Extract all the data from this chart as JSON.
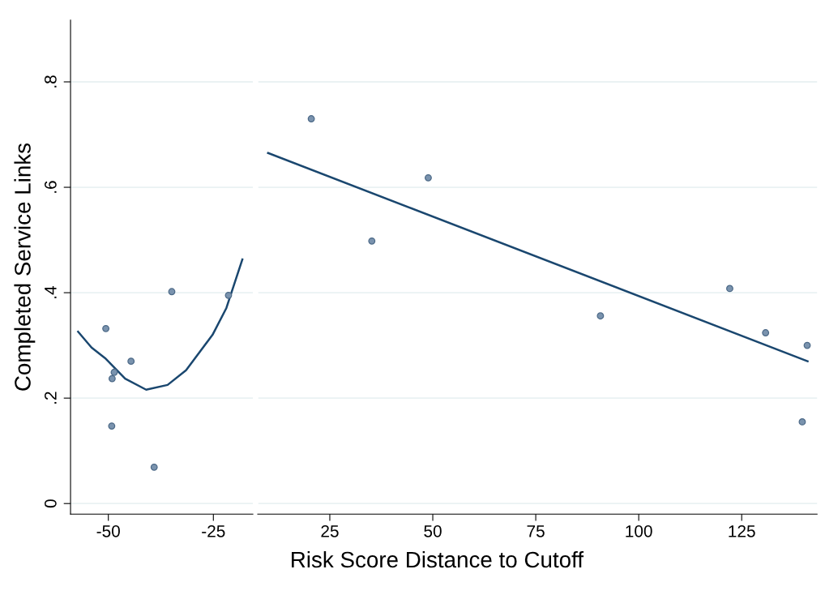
{
  "chart_data": [
    {
      "type": "scatter",
      "ylabel": "Completed Service Links",
      "xlim": [
        -59,
        -15.6
      ],
      "xticks": [
        -50,
        -25
      ],
      "ylim": [
        -0.02,
        0.917
      ],
      "yticks": [
        {
          "value": 0,
          "label": "0"
        },
        {
          "value": 0.2,
          "label": ".2"
        },
        {
          "value": 0.4,
          "label": ".4"
        },
        {
          "value": 0.6,
          "label": ".6"
        },
        {
          "value": 0.8,
          "label": ".8"
        }
      ],
      "grid": "y",
      "series": [
        {
          "marker": "circle",
          "color": "#7a93ae",
          "x": [
            -50.6,
            -34.9,
            -21.4,
            -44.6,
            -48.6,
            -49.1,
            -49.2,
            -39.1
          ],
          "values": [
            0.332,
            0.402,
            0.395,
            0.27,
            0.249,
            0.237,
            0.147,
            0.069
          ]
        },
        {
          "type": "line",
          "color": "#1a476f",
          "x": [
            -57.2,
            -54.0,
            -50.8,
            -46.0,
            -41.0,
            -35.9,
            -31.5,
            -25.2,
            -21.9,
            -18.1
          ],
          "values": [
            0.326,
            0.296,
            0.276,
            0.237,
            0.216,
            0.225,
            0.253,
            0.32,
            0.371,
            0.463
          ]
        }
      ]
    },
    {
      "type": "scatter",
      "xlabel": "Risk Score Distance to Cutoff",
      "xlim": [
        7.5,
        143.3
      ],
      "xticks": [
        25,
        50,
        75,
        100,
        125
      ],
      "ylim": [
        -0.02,
        0.917
      ],
      "yticks": [
        0,
        0.2,
        0.4,
        0.6,
        0.8
      ],
      "tick_labels": "x",
      "grid": "y",
      "series": [
        {
          "marker": "circle",
          "color": "#7a93ae",
          "x": [
            20.5,
            48.9,
            35.2,
            90.7,
            122.1,
            130.8,
            140.9,
            139.7
          ],
          "values": [
            0.73,
            0.618,
            0.498,
            0.356,
            0.408,
            0.324,
            0.3,
            0.155
          ]
        },
        {
          "type": "line",
          "color": "#1a476f",
          "x": [
            10.0,
            141.0
          ],
          "values": [
            0.665,
            0.27
          ]
        }
      ]
    }
  ]
}
